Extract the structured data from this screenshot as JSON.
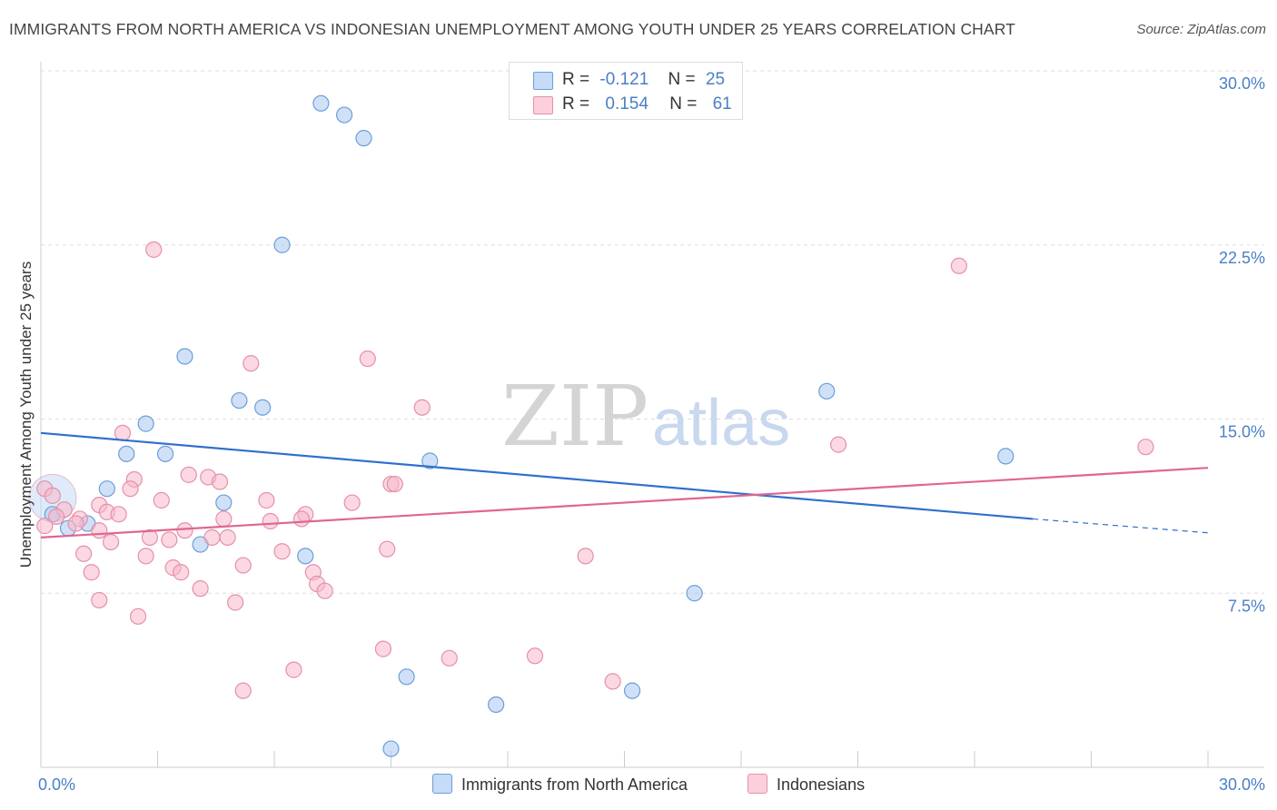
{
  "header": {
    "title": "IMMIGRANTS FROM NORTH AMERICA VS INDONESIAN UNEMPLOYMENT AMONG YOUTH UNDER 25 YEARS CORRELATION CHART",
    "source": "Source: ZipAtlas.com"
  },
  "legend": {
    "rows": [
      {
        "r_label": "R =",
        "r_value": "-0.121",
        "n_label": "N =",
        "n_value": "25",
        "color": "#a9c8f0"
      },
      {
        "r_label": "R =",
        "r_value": "0.154",
        "n_label": "N =",
        "n_value": "61",
        "color": "#f7b8ca"
      }
    ]
  },
  "watermark": {
    "zip": "ZIP",
    "atlas": "atlas"
  },
  "chart_data": {
    "type": "scatter",
    "xlabel": "",
    "ylabel": "Unemployment Among Youth under 25 years",
    "xlim": [
      0,
      30
    ],
    "ylim": [
      0,
      30
    ],
    "x_tick_labels": [
      "0.0%",
      "30.0%"
    ],
    "y_ticks": [
      7.5,
      15.0,
      22.5,
      30.0
    ],
    "y_tick_labels": [
      "7.5%",
      "15.0%",
      "22.5%",
      "30.0%"
    ],
    "grid": true,
    "legend_placement": "top-center",
    "series": [
      {
        "name": "Immigrants from North America",
        "color": "#a9c8f0",
        "stroke": "#6a9fd8",
        "trend_color": "#2f6fce",
        "trend": {
          "x0": 0,
          "y0": 14.4,
          "x1": 25.5,
          "y1": 10.7,
          "dash_to_x": 30,
          "dash_to_y": 10.1
        },
        "points": [
          [
            7.2,
            28.6
          ],
          [
            7.8,
            28.1
          ],
          [
            8.3,
            27.1
          ],
          [
            6.2,
            22.5
          ],
          [
            3.7,
            17.7
          ],
          [
            5.1,
            15.8
          ],
          [
            5.7,
            15.5
          ],
          [
            2.7,
            14.8
          ],
          [
            2.2,
            13.5
          ],
          [
            3.2,
            13.5
          ],
          [
            10.0,
            13.2
          ],
          [
            20.2,
            16.2
          ],
          [
            24.8,
            13.4
          ],
          [
            1.7,
            12.0
          ],
          [
            4.7,
            11.4
          ],
          [
            0.3,
            10.9
          ],
          [
            0.7,
            10.3
          ],
          [
            1.2,
            10.5
          ],
          [
            4.1,
            9.6
          ],
          [
            6.8,
            9.1
          ],
          [
            16.8,
            7.5
          ],
          [
            9.4,
            3.9
          ],
          [
            11.7,
            2.7
          ],
          [
            15.2,
            3.3
          ],
          [
            9.0,
            0.8
          ]
        ]
      },
      {
        "name": "Indonesians",
        "color": "#f7b8ca",
        "stroke": "#e590aa",
        "trend_color": "#e06690",
        "trend": {
          "x0": 0,
          "y0": 9.9,
          "x1": 30,
          "y1": 12.9
        },
        "points": [
          [
            2.9,
            22.3
          ],
          [
            23.6,
            21.6
          ],
          [
            8.4,
            17.6
          ],
          [
            5.4,
            17.4
          ],
          [
            9.8,
            15.5
          ],
          [
            2.1,
            14.4
          ],
          [
            20.5,
            13.9
          ],
          [
            28.4,
            13.8
          ],
          [
            3.8,
            12.6
          ],
          [
            4.3,
            12.5
          ],
          [
            2.4,
            12.4
          ],
          [
            4.6,
            12.3
          ],
          [
            9.0,
            12.2
          ],
          [
            2.3,
            12.0
          ],
          [
            0.1,
            12.0
          ],
          [
            3.1,
            11.5
          ],
          [
            5.8,
            11.5
          ],
          [
            8.0,
            11.4
          ],
          [
            1.5,
            11.3
          ],
          [
            0.6,
            11.1
          ],
          [
            1.7,
            11.0
          ],
          [
            2.0,
            10.9
          ],
          [
            6.8,
            10.9
          ],
          [
            0.4,
            10.8
          ],
          [
            1.0,
            10.7
          ],
          [
            4.7,
            10.7
          ],
          [
            5.9,
            10.6
          ],
          [
            6.7,
            10.7
          ],
          [
            0.9,
            10.5
          ],
          [
            0.1,
            10.4
          ],
          [
            3.7,
            10.2
          ],
          [
            2.8,
            9.9
          ],
          [
            3.3,
            9.8
          ],
          [
            4.4,
            9.9
          ],
          [
            4.8,
            9.9
          ],
          [
            1.8,
            9.7
          ],
          [
            1.1,
            9.2
          ],
          [
            2.7,
            9.1
          ],
          [
            6.2,
            9.3
          ],
          [
            8.9,
            9.4
          ],
          [
            14.0,
            9.1
          ],
          [
            5.2,
            8.7
          ],
          [
            3.4,
            8.6
          ],
          [
            3.6,
            8.4
          ],
          [
            1.3,
            8.4
          ],
          [
            7.0,
            8.4
          ],
          [
            7.1,
            7.9
          ],
          [
            7.3,
            7.6
          ],
          [
            4.1,
            7.7
          ],
          [
            1.5,
            7.2
          ],
          [
            5.0,
            7.1
          ],
          [
            2.5,
            6.5
          ],
          [
            8.8,
            5.1
          ],
          [
            10.5,
            4.7
          ],
          [
            12.7,
            4.8
          ],
          [
            6.5,
            4.2
          ],
          [
            14.7,
            3.7
          ],
          [
            5.2,
            3.3
          ],
          [
            0.3,
            11.7
          ],
          [
            1.5,
            10.2
          ],
          [
            9.1,
            12.2
          ]
        ]
      }
    ]
  },
  "bottom_legend": [
    "Immigrants from North America",
    "Indonesians"
  ]
}
